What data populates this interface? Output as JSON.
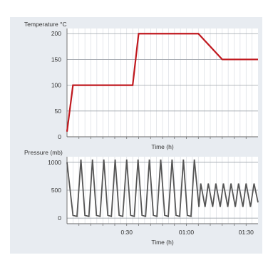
{
  "chart_data": [
    {
      "type": "line",
      "ylabel": "Temperature °C",
      "xlabel": "Time (h)",
      "ylim": [
        0,
        210
      ],
      "yticks": [
        "0",
        "50",
        "100",
        "150",
        "200"
      ],
      "xlim": [
        0,
        96
      ],
      "grid": true,
      "series": [
        {
          "color": "#c0191f",
          "points": [
            [
              0,
              10
            ],
            [
              3,
              100
            ],
            [
              33,
              100
            ],
            [
              36,
              200
            ],
            [
              66,
              200
            ],
            [
              78,
              150
            ],
            [
              96,
              150
            ]
          ]
        }
      ]
    },
    {
      "type": "line",
      "ylabel": "Pressure (mb)",
      "xlabel": "Time (h)",
      "ylim": [
        -100,
        1100
      ],
      "yticks": [
        "0",
        "500",
        "1000"
      ],
      "xlim": [
        0,
        96
      ],
      "xticks": [
        {
          "x": 30,
          "label": "0:30"
        },
        {
          "x": 60,
          "label": "01:00"
        },
        {
          "x": 90,
          "label": "01:30"
        }
      ],
      "grid": true,
      "series": [
        {
          "color": "#555555",
          "points": [
            [
              0,
              1000
            ],
            [
              3,
              50
            ],
            [
              5,
              30
            ],
            [
              7,
              1050
            ],
            [
              9,
              50
            ],
            [
              11,
              30
            ],
            [
              12.8,
              1050
            ],
            [
              14.8,
              50
            ],
            [
              16.6,
              30
            ],
            [
              18.5,
              1050
            ],
            [
              20.5,
              50
            ],
            [
              22.3,
              30
            ],
            [
              24.2,
              1050
            ],
            [
              26.2,
              50
            ],
            [
              28,
              30
            ],
            [
              30,
              1050
            ],
            [
              32,
              50
            ],
            [
              33.8,
              30
            ],
            [
              35.7,
              1050
            ],
            [
              37.7,
              50
            ],
            [
              39.5,
              30
            ],
            [
              41.4,
              1050
            ],
            [
              43.4,
              50
            ],
            [
              45.2,
              30
            ],
            [
              47.1,
              1050
            ],
            [
              49.1,
              50
            ],
            [
              50.9,
              30
            ],
            [
              52.8,
              1050
            ],
            [
              54.8,
              50
            ],
            [
              56.6,
              30
            ],
            [
              58.5,
              1050
            ],
            [
              60.5,
              50
            ],
            [
              62.3,
              30
            ],
            [
              64,
              1050
            ],
            [
              66.3,
              200
            ],
            [
              67.2,
              620
            ],
            [
              69.4,
              200
            ],
            [
              71,
              620
            ],
            [
              73.2,
              200
            ],
            [
              74.8,
              620
            ],
            [
              77,
              200
            ],
            [
              78.6,
              620
            ],
            [
              80.8,
              200
            ],
            [
              82.4,
              620
            ],
            [
              84.6,
              200
            ],
            [
              86.2,
              620
            ],
            [
              88.4,
              200
            ],
            [
              90,
              620
            ],
            [
              92.2,
              200
            ],
            [
              94,
              620
            ],
            [
              96,
              280
            ]
          ]
        }
      ]
    }
  ]
}
